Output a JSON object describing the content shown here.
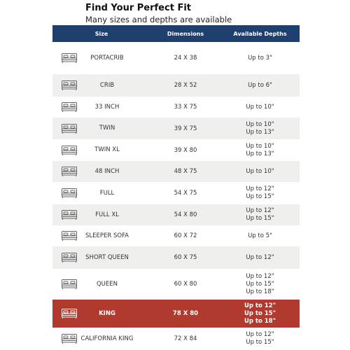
{
  "header": {
    "title": "Find Your Perfect Fit",
    "subtitle": "Many sizes and depths are available"
  },
  "table": {
    "columns": [
      "Size",
      "Dimensions",
      "Available Depths"
    ],
    "rows": [
      {
        "size": "PORTACRIB",
        "dimensions": "24 X 38",
        "depths": [
          "Up to 3\""
        ]
      },
      {
        "size": "CRIB",
        "dimensions": "28 X 52",
        "depths": [
          "Up to 6\""
        ]
      },
      {
        "size": "33 INCH",
        "dimensions": "33 X 75",
        "depths": [
          "Up to 10\""
        ]
      },
      {
        "size": "TWIN",
        "dimensions": "39 X 75",
        "depths": [
          "Up to 10\"",
          "Up to 13\""
        ]
      },
      {
        "size": "TWIN XL",
        "dimensions": "39 X 80",
        "depths": [
          "Up to 10\"",
          "Up to 13\""
        ]
      },
      {
        "size": "48 INCH",
        "dimensions": "48 X 75",
        "depths": [
          "Up to 10\""
        ]
      },
      {
        "size": "FULL",
        "dimensions": "54 X 75",
        "depths": [
          "Up to 12\"",
          "Up to 15\""
        ]
      },
      {
        "size": "FULL XL",
        "dimensions": "54 X 80",
        "depths": [
          "Up to 12\"",
          "Up to 15\""
        ]
      },
      {
        "size": "SLEEPER SOFA",
        "dimensions": "60 X 72",
        "depths": [
          "Up to 5\""
        ]
      },
      {
        "size": "SHORT QUEEN",
        "dimensions": "60 X 75",
        "depths": [
          "Up to 12\""
        ]
      },
      {
        "size": "QUEEN",
        "dimensions": "60 X 80",
        "depths": [
          "Up to 12\"",
          "Up to 15\"",
          "Up to 18\""
        ]
      },
      {
        "size": "KING",
        "dimensions": "78 X 80",
        "depths": [
          "Up to 12\"",
          "Up to 15\"",
          "Up to 18\""
        ]
      },
      {
        "size": "CALIFORNIA KING",
        "dimensions": "72 X 84",
        "depths": [
          "Up to 12\"",
          "Up to 15\""
        ]
      }
    ]
  }
}
